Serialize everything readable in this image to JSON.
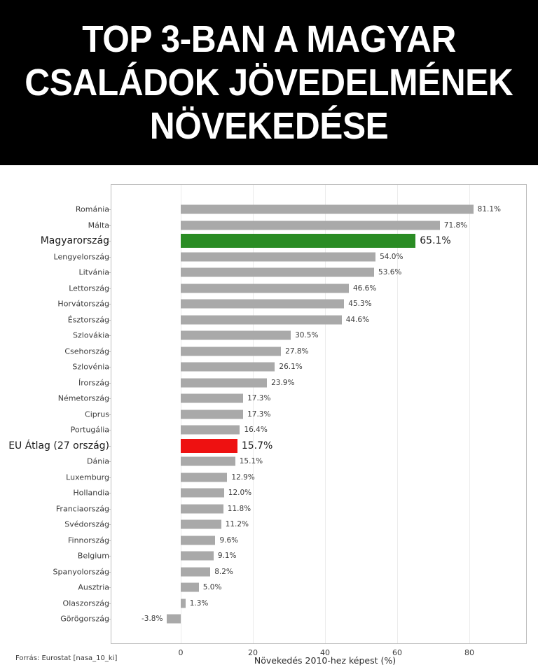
{
  "banner": {
    "lines": [
      "TOP 3-BAN A MAGYAR",
      "CSALÁDOK JÖVEDELMÉNEK",
      "NÖVEKEDÉSE"
    ]
  },
  "source": "Forrás: Eurostat [nasa_10_ki]",
  "colors": {
    "default": "#a9a9a9",
    "highlight_hu": "#2a8c24",
    "highlight_eu": "#ee1111"
  },
  "chart_data": {
    "type": "bar",
    "orientation": "horizontal",
    "title": "TOP 3-BAN A MAGYAR CSALÁDOK JÖVEDELMÉNEK NÖVEKEDÉSE",
    "xlabel": "Növekedés 2010-hez képest (%)",
    "ylabel": "",
    "xlim": [
      -19,
      96
    ],
    "xticks": [
      0,
      20,
      40,
      60,
      80
    ],
    "grid": true,
    "categories": [
      "Románia",
      "Málta",
      "Magyarország",
      "Lengyelország",
      "Litvánia",
      "Lettország",
      "Horvátország",
      "Észtország",
      "Szlovákia",
      "Csehország",
      "Szlovénia",
      "Írország",
      "Németország",
      "Ciprus",
      "Portugália",
      "EU Átlag (27 ország)",
      "Dánia",
      "Luxemburg",
      "Hollandia",
      "Franciaország",
      "Svédország",
      "Finnország",
      "Belgium",
      "Spanyolország",
      "Ausztria",
      "Olaszország",
      "Görögország"
    ],
    "values": [
      81.1,
      71.8,
      65.1,
      54.0,
      53.6,
      46.6,
      45.3,
      44.6,
      30.5,
      27.8,
      26.1,
      23.9,
      17.3,
      17.3,
      16.4,
      15.7,
      15.1,
      12.9,
      12.0,
      11.8,
      11.2,
      9.6,
      9.1,
      8.2,
      5.0,
      1.3,
      -3.8
    ],
    "value_labels": [
      "81.1%",
      "71.8%",
      "65.1%",
      "54.0%",
      "53.6%",
      "46.6%",
      "45.3%",
      "44.6%",
      "30.5%",
      "27.8%",
      "26.1%",
      "23.9%",
      "17.3%",
      "17.3%",
      "16.4%",
      "15.7%",
      "15.1%",
      "12.9%",
      "12.0%",
      "11.8%",
      "11.2%",
      "9.6%",
      "9.1%",
      "8.2%",
      "5.0%",
      "1.3%",
      "-3.8%"
    ],
    "highlights": {
      "Magyarország": "#2a8c24",
      "EU Átlag (27 ország)": "#ee1111"
    },
    "source": "Forrás: Eurostat [nasa_10_ki]"
  }
}
